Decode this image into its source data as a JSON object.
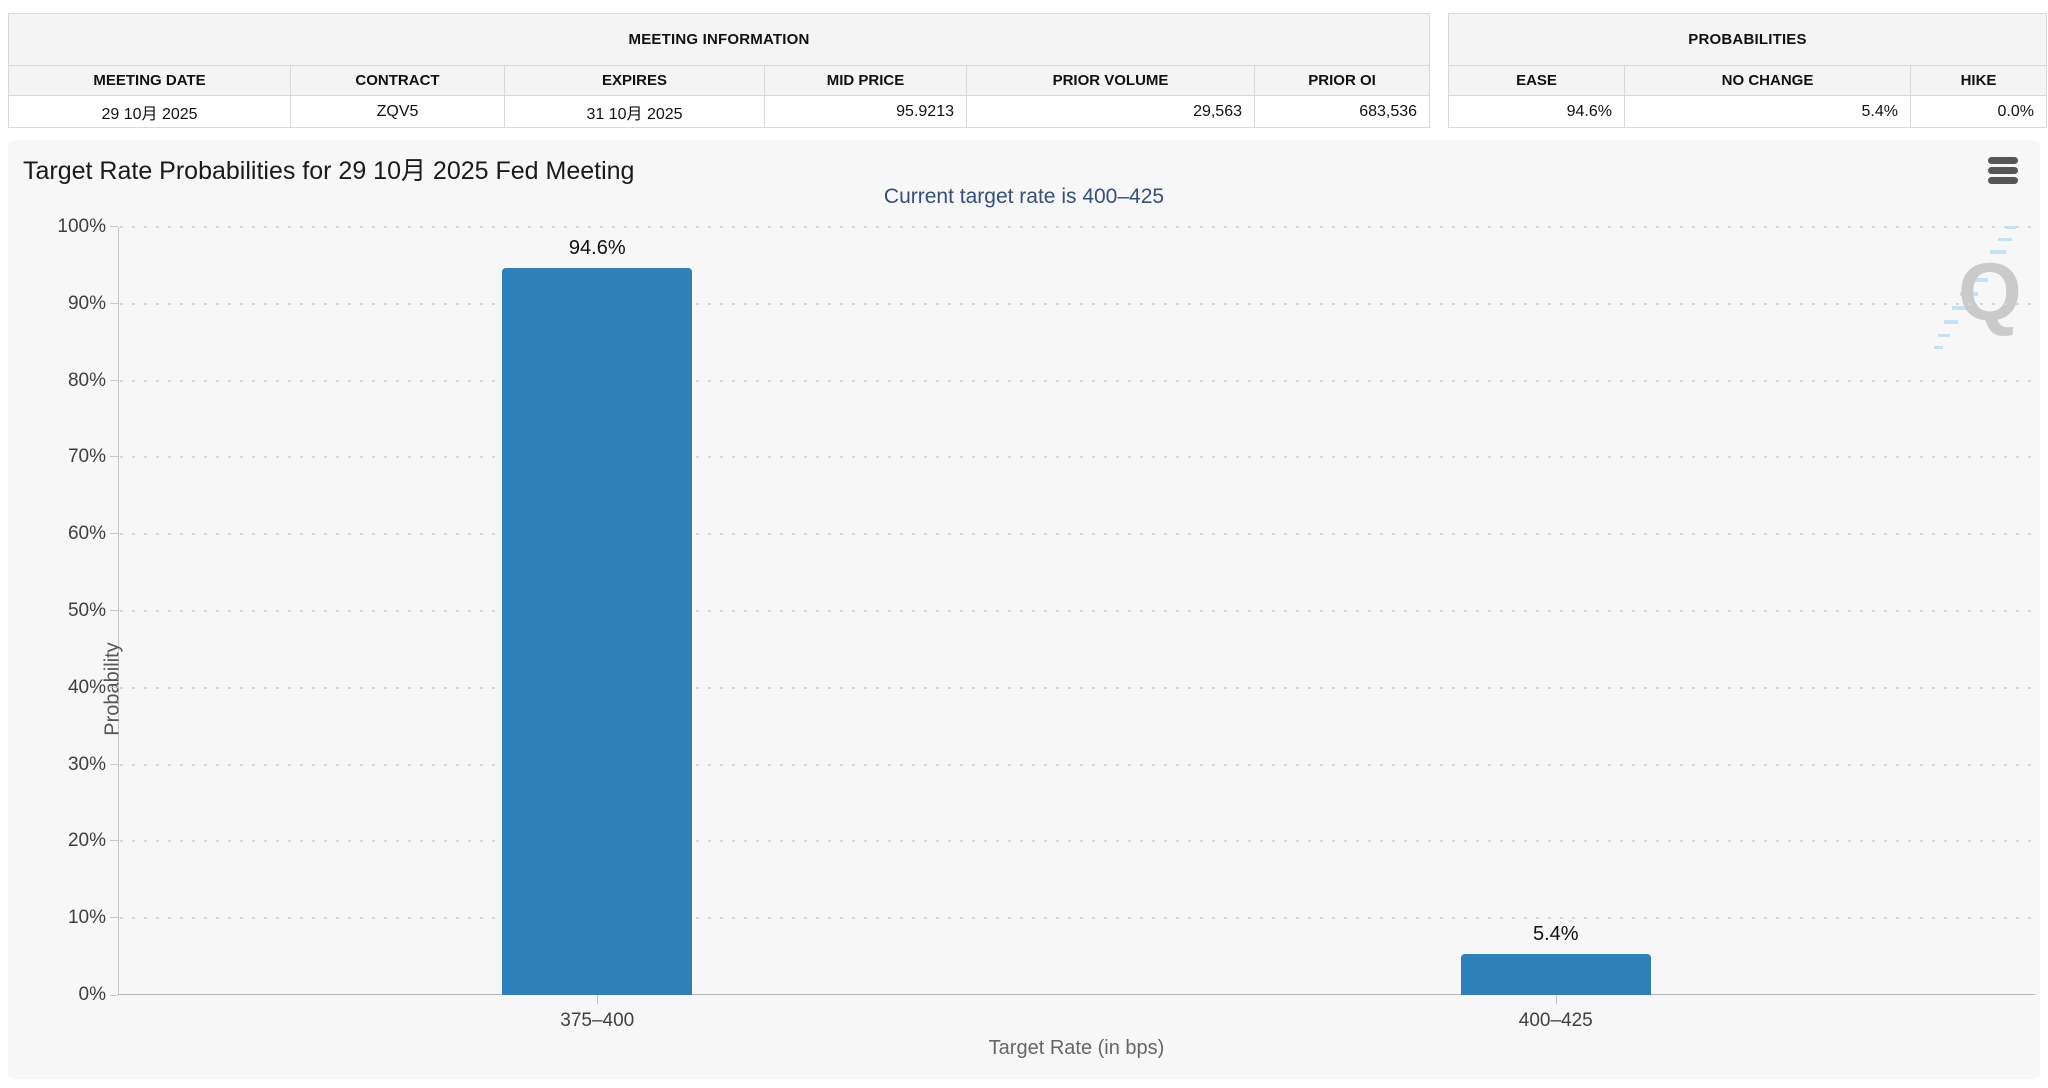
{
  "meeting_info": {
    "title": "MEETING INFORMATION",
    "columns": [
      "MEETING DATE",
      "CONTRACT",
      "EXPIRES",
      "MID PRICE",
      "PRIOR VOLUME",
      "PRIOR OI"
    ],
    "values": [
      "29 10月 2025",
      "ZQV5",
      "31 10月 2025",
      "95.9213",
      "29,563",
      "683,536"
    ]
  },
  "probabilities": {
    "title": "PROBABILITIES",
    "columns": [
      "EASE",
      "NO CHANGE",
      "HIKE"
    ],
    "values": [
      "94.6%",
      "5.4%",
      "0.0%"
    ]
  },
  "chart": {
    "menu_icon": "hamburger-menu-icon",
    "watermark_letter": "Q"
  },
  "chart_data": {
    "type": "bar",
    "title": "Target Rate Probabilities for 29 10月 2025 Fed Meeting",
    "subtitle": "Current target rate is 400–425",
    "categories": [
      "375–400",
      "400–425"
    ],
    "values": [
      94.6,
      5.4
    ],
    "value_labels": [
      "94.6%",
      "5.4%"
    ],
    "xlabel": "Target Rate (in bps)",
    "ylabel": "Probability",
    "ylim": [
      0,
      100
    ],
    "ytick_labels": [
      "0%",
      "10%",
      "20%",
      "30%",
      "40%",
      "50%",
      "60%",
      "70%",
      "80%",
      "90%",
      "100%"
    ],
    "grid": "dotted-horizontal",
    "legend": "none",
    "bar_color": "#2d80b9",
    "background_color": "#f7f7f8"
  }
}
